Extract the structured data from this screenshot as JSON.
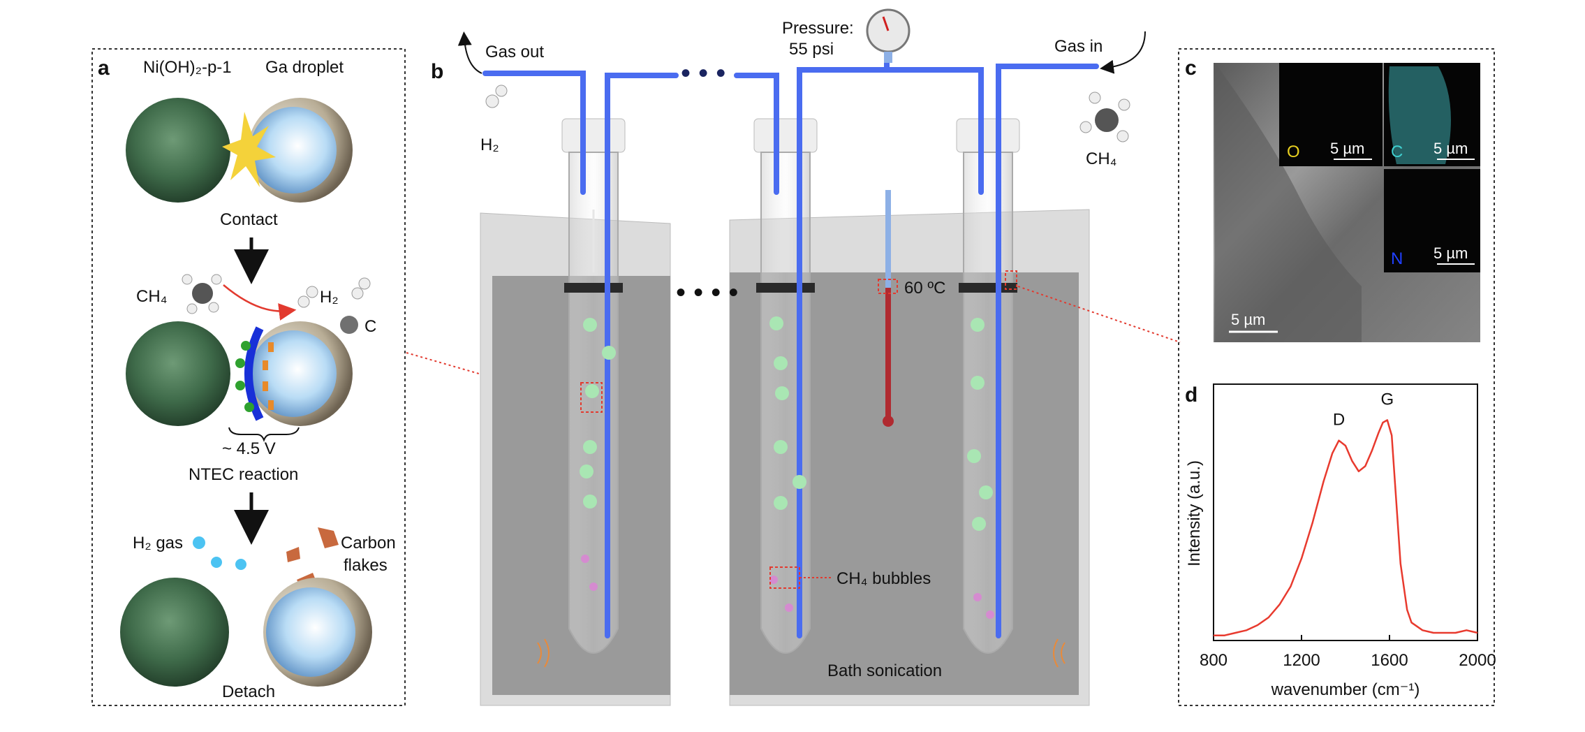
{
  "panel_a": {
    "letter": "a",
    "top_left_label": "Ni(OH)₂-p-1",
    "top_right_label": "Ga droplet",
    "step1": "Contact",
    "ch4": "CH₄",
    "h2": "H₂",
    "carbon": "C",
    "voltage": "~ 4.5 V",
    "step2": "NTEC reaction",
    "h2_gas": "H₂ gas",
    "carbon_flakes_1": "Carbon",
    "carbon_flakes_2": "flakes",
    "step3": "Detach"
  },
  "panel_b": {
    "letter": "b",
    "gas_out": "Gas out",
    "gas_in": "Gas in",
    "pressure_1": "Pressure:",
    "pressure_2": "55 psi",
    "h2": "H₂",
    "ch4": "CH₄",
    "temperature": "60 ºC",
    "bubbles": "CH₄ bubbles",
    "sonication": "Bath sonication",
    "colors": {
      "tube": "#4a6cf0",
      "bath": "#9a9a9a",
      "thermo": "#b02a30"
    }
  },
  "panel_c": {
    "letter": "c",
    "main_scale": "5 µm",
    "map_o": {
      "element": "O",
      "scale": "5 µm",
      "color": "#e8d020"
    },
    "map_c": {
      "element": "C",
      "scale": "5 µm",
      "color": "#40d0d0"
    },
    "map_n": {
      "element": "N",
      "scale": "5 µm",
      "color": "#2040ff"
    }
  },
  "chart_data": {
    "type": "line",
    "panel_letter": "d",
    "xlabel": "wavenumber (cm⁻¹)",
    "ylabel": "Intensity (a.u.)",
    "xlim": [
      800,
      2000
    ],
    "ylim": [
      0,
      1.0
    ],
    "xticks": [
      "800",
      "1200",
      "1600",
      "2000"
    ],
    "annotations": [
      {
        "text": "D",
        "x": 1370
      },
      {
        "text": "G",
        "x": 1590
      }
    ],
    "series": [
      {
        "color": "#e83a2e",
        "x": [
          800,
          850,
          900,
          950,
          1000,
          1050,
          1100,
          1150,
          1200,
          1250,
          1300,
          1340,
          1370,
          1400,
          1430,
          1460,
          1490,
          1520,
          1550,
          1570,
          1590,
          1610,
          1630,
          1650,
          1680,
          1700,
          1750,
          1800,
          1850,
          1900,
          1950,
          2000
        ],
        "y": [
          0.02,
          0.02,
          0.03,
          0.04,
          0.06,
          0.09,
          0.14,
          0.21,
          0.32,
          0.46,
          0.62,
          0.73,
          0.78,
          0.76,
          0.7,
          0.66,
          0.68,
          0.74,
          0.81,
          0.85,
          0.86,
          0.8,
          0.55,
          0.3,
          0.12,
          0.07,
          0.04,
          0.03,
          0.03,
          0.03,
          0.04,
          0.03
        ]
      }
    ]
  }
}
